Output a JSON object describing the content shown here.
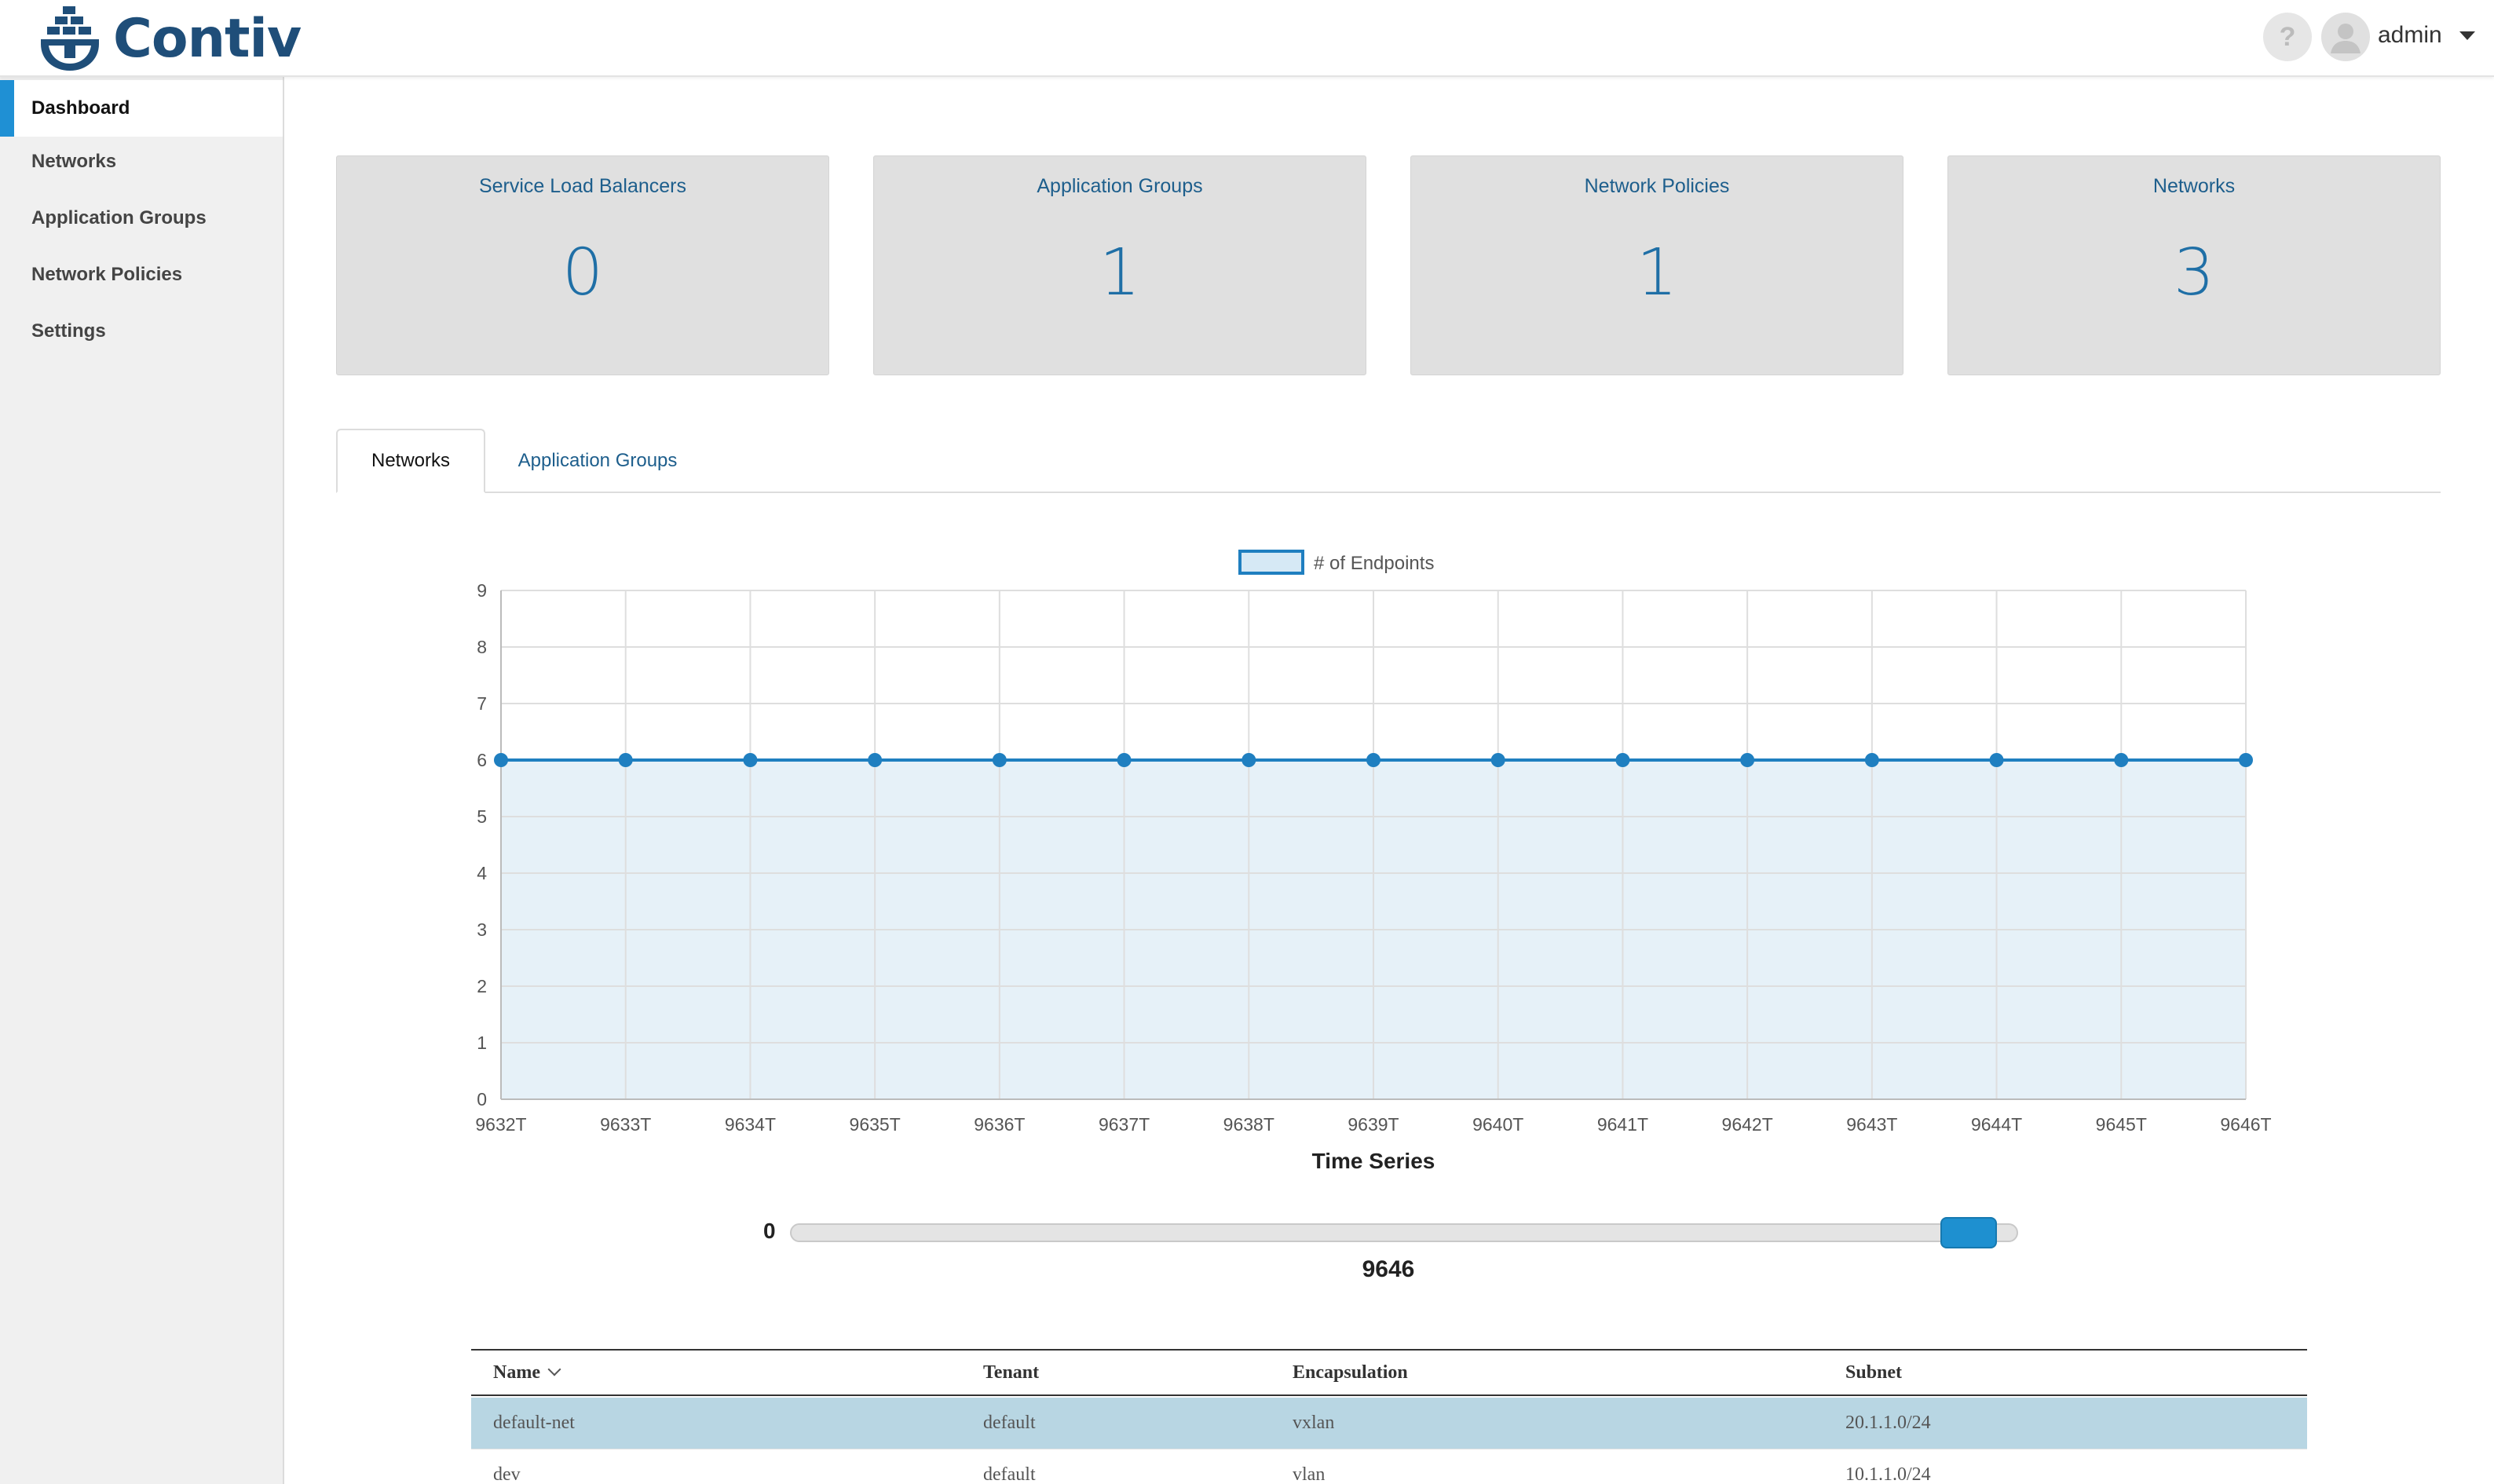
{
  "header": {
    "brand": "Contiv",
    "help_label": "?",
    "user": "admin"
  },
  "sidebar": {
    "items": [
      {
        "label": "Dashboard",
        "active": true
      },
      {
        "label": "Networks"
      },
      {
        "label": "Application Groups"
      },
      {
        "label": "Network Policies"
      },
      {
        "label": "Settings"
      }
    ]
  },
  "cards": [
    {
      "title": "Service Load Balancers",
      "value": "0"
    },
    {
      "title": "Application Groups",
      "value": "1"
    },
    {
      "title": "Network Policies",
      "value": "1"
    },
    {
      "title": "Networks",
      "value": "3"
    }
  ],
  "tabs": [
    {
      "label": "Networks",
      "active": true
    },
    {
      "label": "Application Groups"
    }
  ],
  "chart_data": {
    "type": "line",
    "title": "",
    "xlabel": "Time Series",
    "ylabel": "",
    "series": [
      {
        "name": "# of Endpoints",
        "values": [
          6,
          6,
          6,
          6,
          6,
          6,
          6,
          6,
          6,
          6,
          6,
          6,
          6,
          6,
          6
        ]
      }
    ],
    "x": [
      "9632T",
      "9633T",
      "9634T",
      "9635T",
      "9636T",
      "9637T",
      "9638T",
      "9639T",
      "9640T",
      "9641T",
      "9642T",
      "9643T",
      "9644T",
      "9645T",
      "9646T"
    ],
    "ylim": [
      0,
      9
    ],
    "yticks": [
      0,
      1,
      2,
      3,
      4,
      5,
      6,
      7,
      8,
      9
    ],
    "grid": true,
    "area_fill": true,
    "legend_position": "top-center",
    "colors": {
      "line": "#1f7fc0",
      "fill": "#e6f1f8",
      "legend_fill": "#d6e9f5"
    }
  },
  "slider": {
    "min_label": "0",
    "value_label": "9646",
    "fraction": 0.96
  },
  "table": {
    "columns": [
      "Name",
      "Tenant",
      "Encapsulation",
      "Subnet"
    ],
    "rows": [
      {
        "name": "default-net",
        "tenant": "default",
        "encap": "vxlan",
        "subnet": "20.1.1.0/24",
        "selected": true
      },
      {
        "name": "dev",
        "tenant": "default",
        "encap": "vlan",
        "subnet": "10.1.1.0/24"
      }
    ]
  }
}
